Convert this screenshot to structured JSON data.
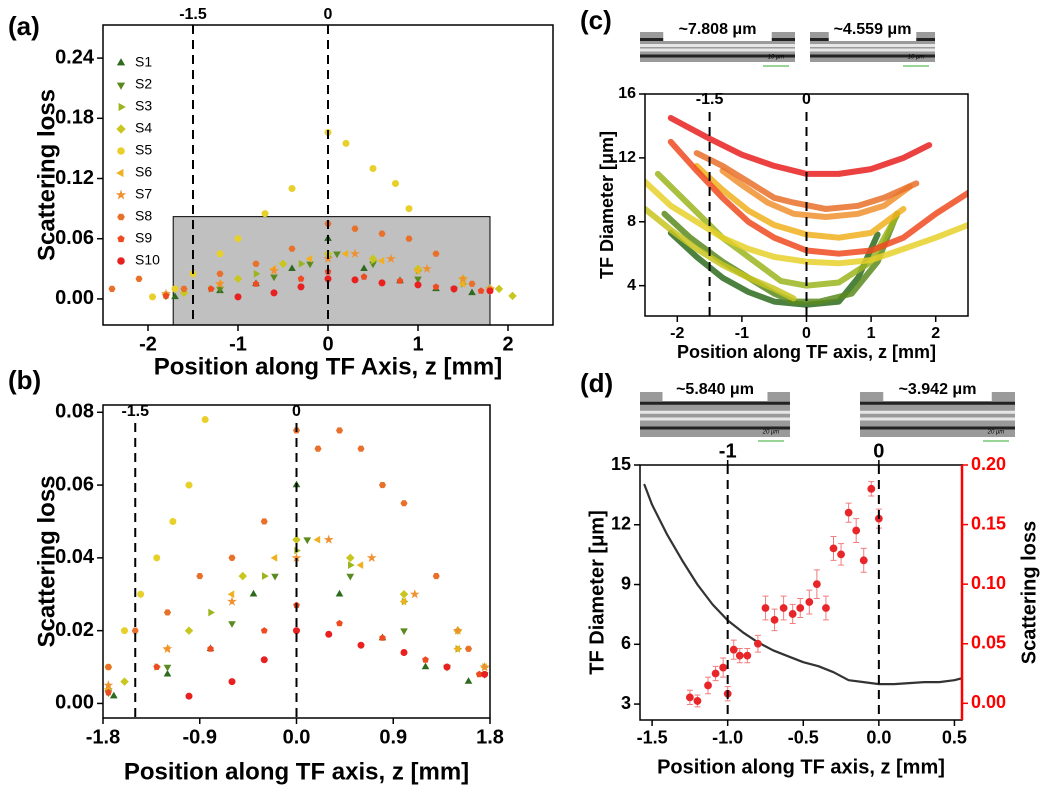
{
  "chart_data": [
    {
      "type": "scatter",
      "panel_label": "(a)",
      "xlabel": "Position along TF Axis, z [mm]",
      "ylabel": "Scattering loss",
      "xlim": [
        -2.5,
        2.5
      ],
      "ylim": [
        -0.026,
        0.273
      ],
      "xticks": [
        -2,
        -1,
        0,
        1,
        2
      ],
      "yticks": [
        {
          "value": 0,
          "label": "0.00"
        },
        0.06,
        0.12,
        0.18,
        0.24
      ],
      "vlines": [
        -1.5,
        0
      ],
      "highlight": {
        "xlim": [
          -1.72,
          1.8
        ],
        "ylim": [
          -0.026,
          0.082
        ]
      },
      "legend": "upper left",
      "series": [
        {
          "name": "S1",
          "color": "#2e6b1e",
          "marker": "triangle-up",
          "x": [
            -1.7,
            -1.2,
            -0.8,
            -0.4,
            0,
            0.4,
            0.8,
            1.2,
            1.6
          ],
          "values": [
            0.002,
            0.008,
            0.015,
            0.03,
            0.06,
            0.03,
            0.018,
            0.01,
            0.006
          ]
        },
        {
          "name": "S2",
          "color": "#5a8a1f",
          "marker": "triangle-down",
          "x": [
            -1.8,
            -1.2,
            -0.6,
            -0.2,
            0.1,
            0.5,
            1.0,
            1.4,
            1.8
          ],
          "values": [
            0.003,
            0.01,
            0.022,
            0.035,
            0.045,
            0.035,
            0.02,
            0.01,
            0.008
          ]
        },
        {
          "name": "S3",
          "color": "#9ab51f",
          "marker": "triangle-right",
          "x": [
            -1.8,
            -1.3,
            -0.8,
            -0.3,
            0,
            0.5,
            1,
            1.5,
            1.8
          ],
          "values": [
            0.004,
            0.01,
            0.025,
            0.035,
            0.042,
            0.038,
            0.028,
            0.015,
            0.01
          ]
        },
        {
          "name": "S4",
          "color": "#c8c61f",
          "marker": "diamond",
          "x": [
            -1.6,
            -1.0,
            -0.5,
            0,
            0.5,
            1.0,
            1.5,
            1.9,
            2.05
          ],
          "values": [
            0.006,
            0.02,
            0.035,
            0.045,
            0.04,
            0.03,
            0.02,
            0.01,
            0.003
          ]
        },
        {
          "name": "S5",
          "color": "#e8d02a",
          "marker": "circle",
          "x": [
            -1.95,
            -1.7,
            -1.5,
            -1.2,
            -1.0,
            -0.7,
            -0.4,
            0,
            0.2,
            0.5,
            0.75,
            0.9
          ],
          "values": [
            0.002,
            0.01,
            0.025,
            0.045,
            0.06,
            0.085,
            0.11,
            0.166,
            0.155,
            0.13,
            0.115,
            0.09
          ]
        },
        {
          "name": "S6",
          "color": "#f0b020",
          "marker": "triangle-left",
          "x": [
            -1.8,
            -1.2,
            -0.6,
            -0.2,
            0.2,
            0.6,
            1.0,
            1.5,
            1.8
          ],
          "values": [
            0.004,
            0.015,
            0.03,
            0.04,
            0.045,
            0.038,
            0.028,
            0.015,
            0.01
          ]
        },
        {
          "name": "S7",
          "color": "#f09030",
          "marker": "star",
          "x": [
            -1.8,
            -1.2,
            -0.6,
            0,
            0.3,
            0.7,
            1.1,
            1.5,
            1.8
          ],
          "values": [
            0.005,
            0.015,
            0.028,
            0.04,
            0.045,
            0.04,
            0.03,
            0.02,
            0.01
          ]
        },
        {
          "name": "S8",
          "color": "#e8702a",
          "marker": "hexagon",
          "x": [
            -2.4,
            -2.1,
            -1.6,
            -1.2,
            -0.8,
            -0.4,
            0,
            0.3,
            0.6,
            0.9,
            1.2,
            1.6
          ],
          "values": [
            0.01,
            0.02,
            0.01,
            0.025,
            0.035,
            0.05,
            0.075,
            0.07,
            0.065,
            0.06,
            0.045,
            0.015
          ]
        },
        {
          "name": "S9",
          "color": "#f04a20",
          "marker": "pentagon",
          "x": [
            -1.8,
            -1.3,
            -0.8,
            -0.3,
            0,
            0.4,
            0.8,
            1.2,
            1.7
          ],
          "values": [
            0.003,
            0.01,
            0.015,
            0.02,
            0.027,
            0.022,
            0.018,
            0.012,
            0.008
          ]
        },
        {
          "name": "S10",
          "color": "#e82020",
          "marker": "circle",
          "x": [
            -1.0,
            -0.6,
            -0.3,
            0,
            0.3,
            0.6,
            1.0,
            1.4,
            1.8
          ],
          "values": [
            0.002,
            0.006,
            0.012,
            0.02,
            0.019,
            0.016,
            0.014,
            0.01,
            0.008
          ]
        }
      ]
    },
    {
      "type": "scatter",
      "panel_label": "(b)",
      "xlabel": "Position along TF axis, z [mm]",
      "ylabel": "Scattering loss",
      "xlim": [
        -1.8,
        1.8
      ],
      "ylim": [
        -0.004,
        0.082
      ],
      "xticks": [
        -1.8,
        -0.9,
        {
          "value": 0,
          "label": "0.0"
        },
        0.9,
        1.8
      ],
      "yticks": [
        {
          "value": 0,
          "label": "0.00"
        },
        0.02,
        0.04,
        0.06,
        0.08
      ],
      "vlines": [
        -1.5,
        0
      ],
      "series": [
        {
          "color": "#2e6b1e",
          "marker": "triangle-up",
          "x": [
            -1.7,
            -1.2,
            -0.8,
            -0.4,
            0,
            0.4,
            0.8,
            1.2,
            1.6
          ],
          "values": [
            0.002,
            0.008,
            0.015,
            0.03,
            0.06,
            0.03,
            0.018,
            0.01,
            0.006
          ]
        },
        {
          "color": "#5a8a1f",
          "marker": "triangle-down",
          "x": [
            -1.75,
            -1.2,
            -0.6,
            -0.2,
            0.1,
            0.5,
            1.0,
            1.4,
            1.75
          ],
          "values": [
            0.003,
            0.01,
            0.022,
            0.035,
            0.045,
            0.035,
            0.02,
            0.01,
            0.008
          ]
        },
        {
          "color": "#9ab51f",
          "marker": "triangle-right",
          "x": [
            -1.75,
            -1.3,
            -0.8,
            -0.3,
            0,
            0.5,
            1,
            1.5,
            1.75
          ],
          "values": [
            0.004,
            0.01,
            0.025,
            0.035,
            0.042,
            0.038,
            0.028,
            0.015,
            0.01
          ]
        },
        {
          "color": "#c8c61f",
          "marker": "diamond",
          "x": [
            -1.6,
            -1.0,
            -0.5,
            0,
            0.5,
            1.0,
            1.5
          ],
          "values": [
            0.006,
            0.02,
            0.035,
            0.045,
            0.04,
            0.03,
            0.02
          ]
        },
        {
          "color": "#e8d02a",
          "marker": "circle",
          "x": [
            -1.75,
            -1.6,
            -1.45,
            -1.3,
            -1.15,
            -1.0,
            -0.85
          ],
          "values": [
            0.01,
            0.02,
            0.03,
            0.04,
            0.05,
            0.06,
            0.078
          ]
        },
        {
          "color": "#f0b020",
          "marker": "triangle-left",
          "x": [
            -1.75,
            -1.2,
            -0.6,
            -0.2,
            0.2,
            0.6,
            1.0,
            1.5,
            1.75
          ],
          "values": [
            0.004,
            0.015,
            0.03,
            0.04,
            0.045,
            0.038,
            0.028,
            0.015,
            0.01
          ]
        },
        {
          "color": "#f09030",
          "marker": "star",
          "x": [
            -1.75,
            -1.2,
            -0.6,
            0,
            0.3,
            0.7,
            1.1,
            1.5,
            1.75
          ],
          "values": [
            0.005,
            0.015,
            0.028,
            0.04,
            0.045,
            0.04,
            0.03,
            0.02,
            0.01
          ]
        },
        {
          "color": "#e8702a",
          "marker": "hexagon",
          "x": [
            -1.75,
            -1.5,
            -1.2,
            -0.9,
            -0.6,
            -0.3,
            0,
            0.2,
            0.4,
            0.6,
            0.8,
            1.0,
            1.3,
            1.6
          ],
          "values": [
            0.01,
            0.02,
            0.025,
            0.035,
            0.04,
            0.05,
            0.075,
            0.07,
            0.075,
            0.07,
            0.06,
            0.055,
            0.035,
            0.015
          ]
        },
        {
          "color": "#f04a20",
          "marker": "pentagon",
          "x": [
            -1.75,
            -1.3,
            -0.8,
            -0.3,
            0,
            0.4,
            0.8,
            1.2,
            1.7
          ],
          "values": [
            0.003,
            0.01,
            0.015,
            0.02,
            0.027,
            0.022,
            0.018,
            0.012,
            0.008
          ]
        },
        {
          "color": "#e82020",
          "marker": "circle",
          "x": [
            -1.0,
            -0.6,
            -0.3,
            0,
            0.3,
            0.6,
            1.0,
            1.4,
            1.75
          ],
          "values": [
            0.002,
            0.006,
            0.012,
            0.02,
            0.019,
            0.016,
            0.014,
            0.01,
            0.008
          ]
        }
      ]
    },
    {
      "type": "line",
      "panel_label": "(c)",
      "xlabel": "Position along TF axis, z [mm]",
      "ylabel": "TF Diameter [μm]",
      "xlim": [
        -2.5,
        2.5
      ],
      "ylim": [
        2.1,
        16
      ],
      "xticks": [
        -2,
        -1,
        0,
        1,
        2
      ],
      "yticks": [
        4,
        8,
        12,
        16
      ],
      "vlines": [
        -1.5,
        0
      ],
      "insets": [
        {
          "label": "~7.808 μm",
          "scale_bar": "10 μm"
        },
        {
          "label": "~4.559 μm",
          "scale_bar": "10 μm"
        }
      ],
      "series": [
        {
          "color": "#2e6b1e",
          "x": [
            -2.1,
            -1.7,
            -1.3,
            -0.9,
            -0.5,
            0,
            0.5,
            0.8,
            1.1
          ],
          "values": [
            7.3,
            5.8,
            4.5,
            3.6,
            3,
            2.8,
            3,
            4.5,
            7.2
          ]
        },
        {
          "color": "#5a8a1f",
          "x": [
            -2.2,
            -1.8,
            -1.3,
            -0.9,
            -0.5,
            -0.2,
            0.2,
            0.7,
            1.1,
            1.4
          ],
          "values": [
            8.5,
            7,
            5.5,
            4.5,
            3.5,
            3,
            3,
            3.5,
            5.5,
            8.5
          ]
        },
        {
          "color": "#9ab51f",
          "x": [
            -2.3,
            -1.8,
            -1.3,
            -0.8,
            -0.4,
            0,
            0.5,
            1,
            1.4
          ],
          "values": [
            11,
            9,
            7,
            5.5,
            4.3,
            4,
            4.2,
            5.5,
            8.4
          ]
        },
        {
          "color": "#c8c61f",
          "x": [
            -2.5,
            -2.1,
            -1.7,
            -1.3,
            -0.9,
            -0.5,
            -0.2
          ],
          "values": [
            8.8,
            7.5,
            6.3,
            5.3,
            4.5,
            3.8,
            3.2
          ]
        },
        {
          "color": "#e8d02a",
          "x": [
            -2.5,
            -2.1,
            -1.7,
            -1.3,
            -0.9,
            -0.5,
            0,
            0.5,
            1,
            1.5,
            2,
            2.5
          ],
          "values": [
            10.5,
            9,
            8,
            7,
            6.3,
            5.8,
            5.5,
            5.4,
            5.6,
            6.3,
            7,
            7.8
          ]
        },
        {
          "color": "#f0b020",
          "x": [
            -1.7,
            -1.3,
            -0.9,
            -0.5,
            0,
            0.5,
            1.0,
            1.5
          ],
          "values": [
            11.5,
            10,
            8.7,
            7.8,
            7.2,
            7,
            7.3,
            8.8
          ]
        },
        {
          "color": "#f09030",
          "x": [
            -1.3,
            -1,
            -0.6,
            -0.2,
            0.3,
            0.8,
            1.2,
            1.6
          ],
          "values": [
            11.2,
            10.3,
            9.2,
            8.5,
            8.3,
            8.5,
            9,
            10.2
          ]
        },
        {
          "color": "#e8702a",
          "x": [
            -1.7,
            -1.3,
            -0.9,
            -0.5,
            -0.2,
            0.3,
            0.8,
            1.2,
            1.7
          ],
          "values": [
            12.3,
            11.5,
            10.5,
            9.5,
            9.2,
            8.8,
            9,
            9.5,
            10.4
          ]
        },
        {
          "color": "#f04a20",
          "x": [
            -2.1,
            -1.7,
            -1.3,
            -0.9,
            -0.5,
            0,
            0.5,
            1,
            1.5,
            2,
            2.5
          ],
          "values": [
            13,
            11.2,
            9.5,
            8,
            7,
            6.2,
            6,
            6.2,
            7,
            8.5,
            9.8
          ]
        },
        {
          "color": "#e82020",
          "x": [
            -2.1,
            -1.5,
            -1,
            -0.5,
            0,
            0.5,
            1,
            1.5,
            1.9
          ],
          "values": [
            14.5,
            13.2,
            12.2,
            11.5,
            11,
            11,
            11.3,
            12,
            12.8
          ]
        }
      ]
    },
    {
      "type": "line",
      "panel_label": "(d)",
      "xlabel": "Position along TF axis, z [mm]",
      "ylabel": "TF Diameter [μm]",
      "y2label": "Scattering loss",
      "y2color": "#ff0000",
      "xlim": [
        -1.58,
        0.55
      ],
      "ylim": [
        2.2,
        15
      ],
      "y2lim": [
        -0.014,
        0.2
      ],
      "xticks": [
        -1.5,
        {
          "value": -1,
          "label": "-1.0"
        },
        -0.5,
        {
          "value": 0,
          "label": "0.0"
        },
        0.5
      ],
      "yticks": [
        3,
        6,
        9,
        12,
        15
      ],
      "y2ticks": [
        {
          "value": 0,
          "label": "0.00"
        },
        0.05,
        {
          "value": 0.1,
          "label": "0.10"
        },
        0.15,
        {
          "value": 0.2,
          "label": "0.20"
        }
      ],
      "vlines": [
        -1,
        0
      ],
      "insets": [
        {
          "label": "~5.840 μm",
          "scale_bar": "20 μm"
        },
        {
          "label": "~3.942 μm",
          "scale_bar": "20 μm"
        }
      ],
      "series": [
        {
          "color": "#333333",
          "x": [
            -1.55,
            -1.5,
            -1.4,
            -1.3,
            -1.2,
            -1.1,
            -1.0,
            -0.9,
            -0.8,
            -0.7,
            -0.6,
            -0.5,
            -0.4,
            -0.3,
            -0.2,
            -0.1,
            0,
            0.1,
            0.2,
            0.3,
            0.4,
            0.5,
            0.55
          ],
          "values": [
            14,
            13,
            11.5,
            10.2,
            9,
            8,
            7.2,
            6.6,
            6.1,
            5.7,
            5.4,
            5.1,
            4.9,
            4.6,
            4.2,
            4.1,
            4.0,
            4.0,
            4.05,
            4.1,
            4.1,
            4.2,
            4.3
          ]
        },
        {
          "type": "scatter",
          "axis": "y2",
          "color": "#e8262a",
          "marker": "circle",
          "x": [
            -1.25,
            -1.2,
            -1.13,
            -1.08,
            -1.03,
            -1.0,
            -0.96,
            -0.92,
            -0.87,
            -0.8,
            -0.75,
            -0.69,
            -0.63,
            -0.57,
            -0.52,
            -0.46,
            -0.41,
            -0.35,
            -0.3,
            -0.25,
            -0.2,
            -0.15,
            -0.1,
            -0.05,
            0
          ],
          "values": [
            0.005,
            0.002,
            0.015,
            0.025,
            0.03,
            0.008,
            0.045,
            0.04,
            0.04,
            0.05,
            0.08,
            0.07,
            0.08,
            0.075,
            0.08,
            0.085,
            0.1,
            0.08,
            0.13,
            0.125,
            0.16,
            0.145,
            0.12,
            0.18,
            0.155
          ],
          "errors": [
            0.006,
            0.005,
            0.007,
            0.006,
            0.008,
            0.006,
            0.008,
            0.006,
            0.006,
            0.007,
            0.01,
            0.009,
            0.01,
            0.008,
            0.008,
            0.01,
            0.012,
            0.01,
            0.01,
            0.009,
            0.008,
            0.01,
            0.01,
            0.006,
            0.008
          ]
        }
      ]
    }
  ]
}
